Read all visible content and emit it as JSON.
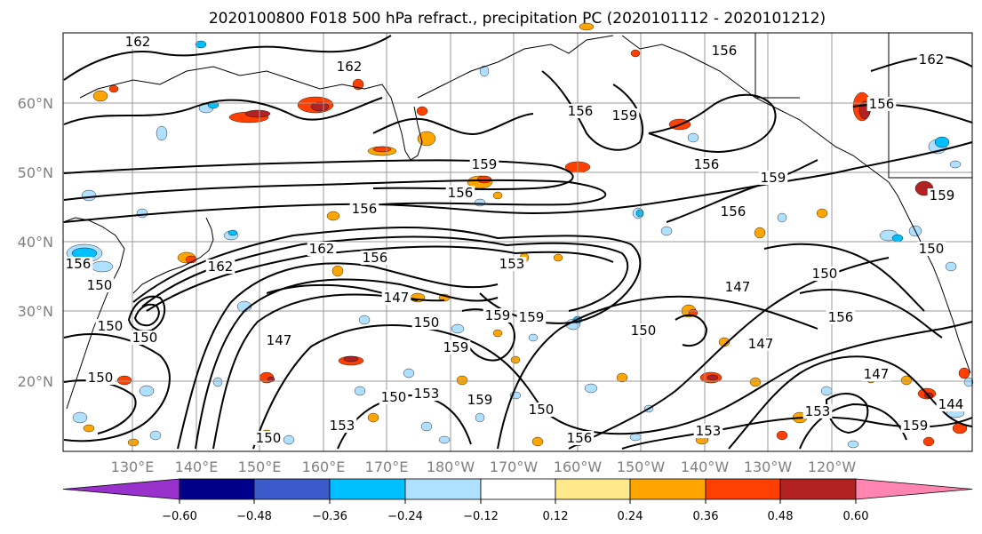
{
  "title": "2020100800 F018 500 hPa refract., precipitation PC (2020101112 - 2020101212)",
  "map": {
    "lat_labels": [
      "60°N",
      "50°N",
      "40°N",
      "30°N",
      "20°N"
    ],
    "lon_labels": [
      "130°E",
      "140°E",
      "150°E",
      "160°E",
      "170°E",
      "180°W",
      "170°W",
      "160°W",
      "150°W",
      "140°W",
      "130°W",
      "120°W"
    ],
    "contour_labels": [
      "162",
      "162",
      "156",
      "162",
      "156",
      "159",
      "156",
      "159",
      "159",
      "156",
      "156",
      "156",
      "159",
      "156",
      "150",
      "156",
      "162",
      "156",
      "153",
      "147",
      "147",
      "150",
      "150",
      "159",
      "159",
      "159",
      "147",
      "150",
      "153",
      "150",
      "159",
      "150",
      "150",
      "156",
      "147",
      "147",
      "144",
      "150",
      "150",
      "153",
      "153",
      "159",
      "156",
      "150",
      "153",
      "162",
      "150"
    ]
  },
  "colorbar": {
    "colors": [
      "#9932cc",
      "#00008b",
      "#3a5bc9",
      "#00bfff",
      "#b0e0ff",
      "#ffffff",
      "#ffe98a",
      "#ffa500",
      "#ff4000",
      "#b22222",
      "#ff85b0"
    ],
    "tick_labels": [
      "−0.60",
      "−0.48",
      "−0.36",
      "−0.24",
      "−0.12",
      "0.12",
      "0.24",
      "0.36",
      "0.48",
      "0.60"
    ]
  }
}
